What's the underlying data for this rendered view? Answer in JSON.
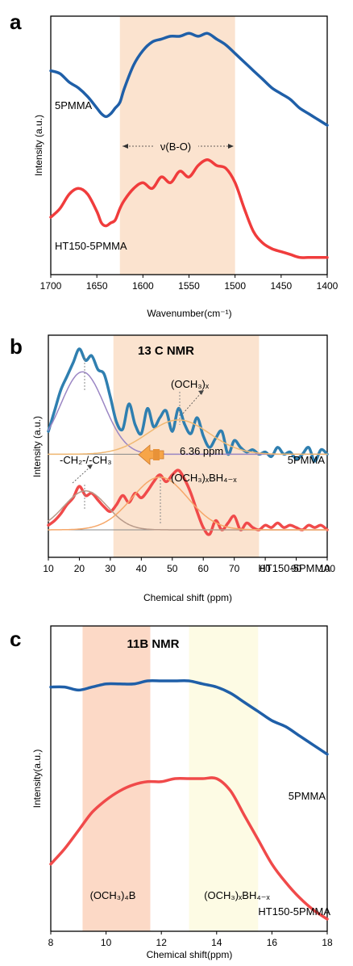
{
  "panels": [
    {
      "label": "a",
      "chart_data": {
        "type": "line",
        "xlabel": "Wavenumber(cm⁻¹)",
        "ylabel": "Intensity (a.u.)",
        "xlim": [
          1700,
          1400
        ],
        "x_reversed": true,
        "xticks": [
          1700,
          1650,
          1600,
          1550,
          1500,
          1450,
          1400
        ],
        "shaded_regions": [
          {
            "from": 1625,
            "to": 1500,
            "color": "#fbe3cf"
          }
        ],
        "annotation": "ν(B-O)",
        "series": [
          {
            "name": "5PMMA",
            "color": "#1f5fa8",
            "x": [
              1700,
              1690,
              1680,
              1670,
              1660,
              1650,
              1645,
              1640,
              1635,
              1630,
              1625,
              1620,
              1610,
              1600,
              1590,
              1580,
              1570,
              1560,
              1550,
              1540,
              1530,
              1520,
              1510,
              1500,
              1490,
              1480,
              1470,
              1460,
              1450,
              1440,
              1430,
              1420,
              1410,
              1400
            ],
            "y": [
              0.86,
              0.85,
              0.82,
              0.8,
              0.77,
              0.73,
              0.71,
              0.7,
              0.71,
              0.73,
              0.75,
              0.8,
              0.88,
              0.93,
              0.96,
              0.97,
              0.98,
              0.98,
              0.99,
              0.98,
              0.99,
              0.97,
              0.95,
              0.92,
              0.89,
              0.86,
              0.83,
              0.8,
              0.78,
              0.76,
              0.73,
              0.71,
              0.69,
              0.67
            ]
          },
          {
            "name": "HT150-5PMMA",
            "color": "#f03c3c",
            "x": [
              1700,
              1690,
              1680,
              1670,
              1660,
              1650,
              1645,
              1640,
              1635,
              1630,
              1625,
              1620,
              1610,
              1600,
              1590,
              1580,
              1570,
              1560,
              1550,
              1540,
              1530,
              1520,
              1510,
              1500,
              1490,
              1480,
              1470,
              1460,
              1450,
              1440,
              1430,
              1420,
              1410,
              1400
            ],
            "y": [
              0.35,
              0.38,
              0.43,
              0.45,
              0.43,
              0.37,
              0.33,
              0.32,
              0.33,
              0.34,
              0.38,
              0.41,
              0.45,
              0.47,
              0.45,
              0.49,
              0.47,
              0.51,
              0.49,
              0.53,
              0.55,
              0.53,
              0.52,
              0.47,
              0.38,
              0.3,
              0.26,
              0.24,
              0.23,
              0.22,
              0.21,
              0.21,
              0.21,
              0.21
            ]
          }
        ]
      }
    },
    {
      "label": "b",
      "chart_data": {
        "type": "line",
        "title": "13 C NMR",
        "xlabel": "Chemical shift (ppm)",
        "ylabel": "Intensity (a.u.)",
        "xlim": [
          10,
          100
        ],
        "xticks": [
          10,
          20,
          30,
          40,
          50,
          60,
          70,
          80,
          90,
          100
        ],
        "shaded_regions": [
          {
            "from": 31,
            "to": 78,
            "color": "#fbe3cf"
          }
        ],
        "annotations": {
          "och3": "(OCH₃)ₓ",
          "ch": "-CH₂-/-CH₃",
          "shift": "6.36 ppm",
          "boron": "(OCH₃)ₓBH₄₋ₓ"
        },
        "series": [
          {
            "name": "5PMMA",
            "color": "#2f7fb0",
            "x": [
              10,
              12,
              14,
              16,
              18,
              20,
              22,
              24,
              26,
              28,
              30,
              32,
              34,
              36,
              38,
              40,
              42,
              44,
              46,
              48,
              50,
              52,
              54,
              56,
              58,
              60,
              62,
              64,
              66,
              68,
              70,
              72,
              74,
              76,
              78,
              80,
              82,
              84,
              86,
              88,
              90,
              92,
              94,
              96,
              98,
              100
            ],
            "y": [
              0.43,
              0.52,
              0.61,
              0.67,
              0.73,
              0.79,
              0.74,
              0.76,
              0.7,
              0.68,
              0.58,
              0.47,
              0.44,
              0.55,
              0.46,
              0.42,
              0.53,
              0.45,
              0.49,
              0.52,
              0.43,
              0.53,
              0.46,
              0.42,
              0.49,
              0.41,
              0.36,
              0.4,
              0.43,
              0.33,
              0.39,
              0.36,
              0.34,
              0.35,
              0.33,
              0.34,
              0.32,
              0.36,
              0.33,
              0.34,
              0.31,
              0.33,
              0.36,
              0.3,
              0.35,
              0.33
            ]
          },
          {
            "name": "HT150-5PMMA",
            "color": "#f04a4a",
            "x": [
              10,
              12,
              14,
              16,
              18,
              20,
              22,
              24,
              26,
              28,
              30,
              32,
              34,
              36,
              38,
              40,
              42,
              44,
              46,
              48,
              50,
              52,
              54,
              56,
              58,
              60,
              62,
              64,
              66,
              68,
              70,
              72,
              74,
              76,
              78,
              80,
              82,
              84,
              86,
              88,
              90,
              92,
              94,
              96,
              98,
              100
            ],
            "y": [
              0.02,
              0.04,
              0.07,
              0.11,
              0.14,
              0.19,
              0.15,
              0.16,
              0.13,
              0.1,
              0.08,
              0.11,
              0.15,
              0.12,
              0.16,
              0.14,
              0.17,
              0.21,
              0.24,
              0.21,
              0.24,
              0.26,
              0.22,
              0.16,
              0.08,
              0.01,
              -0.02,
              0.04,
              0.0,
              0.03,
              0.06,
              0.0,
              0.03,
              0.01,
              0.0,
              0.02,
              0.01,
              0.03,
              0.01,
              0.02,
              0.01,
              0.0,
              0.02,
              0.01,
              0.02,
              0.0
            ]
          },
          {
            "name": "",
            "color": "#9b86c4",
            "center": 21,
            "height": 0.36,
            "width": 7,
            "baseline": 0.33
          },
          {
            "name": "",
            "color": "#f0b872",
            "center": 52,
            "height": 0.15,
            "width": 10,
            "baseline": 0.33
          },
          {
            "name": "",
            "color": "#b89a8a",
            "center": 22,
            "height": 0.17,
            "width": 7,
            "baseline": 0.0
          },
          {
            "name": "",
            "color": "#f6a86a",
            "center": 46,
            "height": 0.23,
            "width": 9,
            "baseline": 0.0
          }
        ]
      }
    },
    {
      "label": "c",
      "chart_data": {
        "type": "line",
        "title": "11B NMR",
        "xlabel": "Chemical shift(ppm)",
        "ylabel": "Intensity(a.u.)",
        "xlim": [
          8,
          18
        ],
        "xticks": [
          8,
          10,
          12,
          14,
          16,
          18
        ],
        "shaded_regions": [
          {
            "from": 9.15,
            "to": 11.6,
            "color": "#fcd9c6",
            "label": "(OCH₃)₄B"
          },
          {
            "from": 13.0,
            "to": 15.5,
            "color": "#fdfbe4",
            "label": "(OCH₃)ₓBH₄₋ₓ"
          }
        ],
        "series": [
          {
            "name": "5PMMA",
            "color": "#1f5fa8",
            "x": [
              8,
              8.5,
              9,
              9.5,
              10,
              10.5,
              11,
              11.5,
              12,
              12.5,
              13,
              13.5,
              14,
              14.5,
              15,
              15.5,
              16,
              16.5,
              17,
              17.5,
              18
            ],
            "y": [
              0.8,
              0.8,
              0.79,
              0.8,
              0.81,
              0.81,
              0.81,
              0.82,
              0.82,
              0.82,
              0.82,
              0.81,
              0.8,
              0.78,
              0.75,
              0.72,
              0.69,
              0.67,
              0.64,
              0.61,
              0.58
            ]
          },
          {
            "name": "HT150-5PMMA",
            "color": "#f04a4a",
            "x": [
              8,
              8.5,
              9,
              9.5,
              10,
              10.5,
              11,
              11.5,
              12,
              12.5,
              13,
              13.5,
              14,
              14.5,
              15,
              15.5,
              16,
              16.5,
              17,
              17.5,
              18
            ],
            "y": [
              0.22,
              0.27,
              0.33,
              0.39,
              0.43,
              0.46,
              0.48,
              0.49,
              0.49,
              0.5,
              0.5,
              0.5,
              0.5,
              0.46,
              0.38,
              0.3,
              0.22,
              0.16,
              0.11,
              0.07,
              0.04
            ]
          }
        ]
      }
    }
  ]
}
